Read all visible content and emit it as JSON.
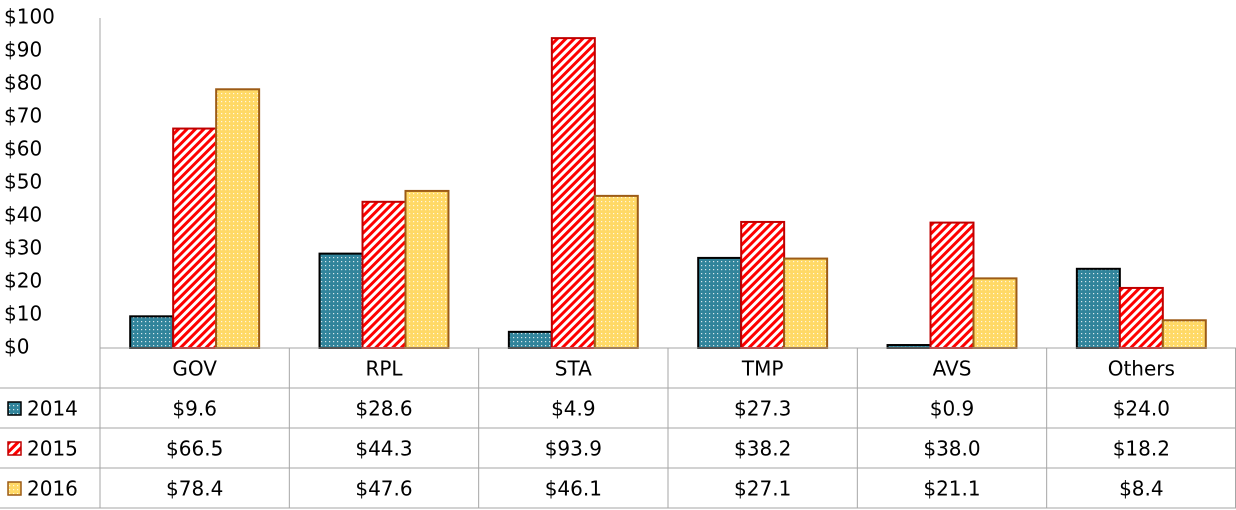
{
  "chart_data": {
    "type": "bar",
    "categories": [
      "GOV",
      "RPL",
      "STA",
      "TMP",
      "AVS",
      "Others"
    ],
    "series": [
      {
        "name": "2014",
        "color": "#31849b",
        "edgecolor": "#000000",
        "pattern": "dots",
        "values": [
          9.6,
          28.6,
          4.9,
          27.3,
          0.9,
          24.0
        ],
        "value_labels": [
          "$9.6",
          "$28.6",
          "$4.9",
          "$27.3",
          "$0.9",
          "$24.0"
        ]
      },
      {
        "name": "2015",
        "color": "#ff0000",
        "edgecolor": "#c00000",
        "pattern": "hatch",
        "values": [
          66.5,
          44.3,
          93.9,
          38.2,
          38.0,
          18.2
        ],
        "value_labels": [
          "$66.5",
          "$44.3",
          "$93.9",
          "$38.2",
          "$38.0",
          "$18.2"
        ]
      },
      {
        "name": "2016",
        "color": "#ffd966",
        "edgecolor": "#9c5b16",
        "pattern": "dots",
        "values": [
          78.4,
          47.6,
          46.1,
          27.1,
          21.1,
          8.4
        ],
        "value_labels": [
          "$78.4",
          "$47.6",
          "$46.1",
          "$27.1",
          "$21.1",
          "$8.4"
        ]
      }
    ],
    "ylim": [
      0,
      100
    ],
    "yticks": [
      {
        "value": 0,
        "label": "$0"
      },
      {
        "value": 10,
        "label": "$10"
      },
      {
        "value": 20,
        "label": "$20"
      },
      {
        "value": 30,
        "label": "$30"
      },
      {
        "value": 40,
        "label": "$40"
      },
      {
        "value": 50,
        "label": "$50"
      },
      {
        "value": 60,
        "label": "$60"
      },
      {
        "value": 70,
        "label": "$70"
      },
      {
        "value": 80,
        "label": "$80"
      },
      {
        "value": 90,
        "label": "$90"
      },
      {
        "value": 100,
        "label": "$100"
      }
    ],
    "grid": false,
    "data_table": true
  }
}
